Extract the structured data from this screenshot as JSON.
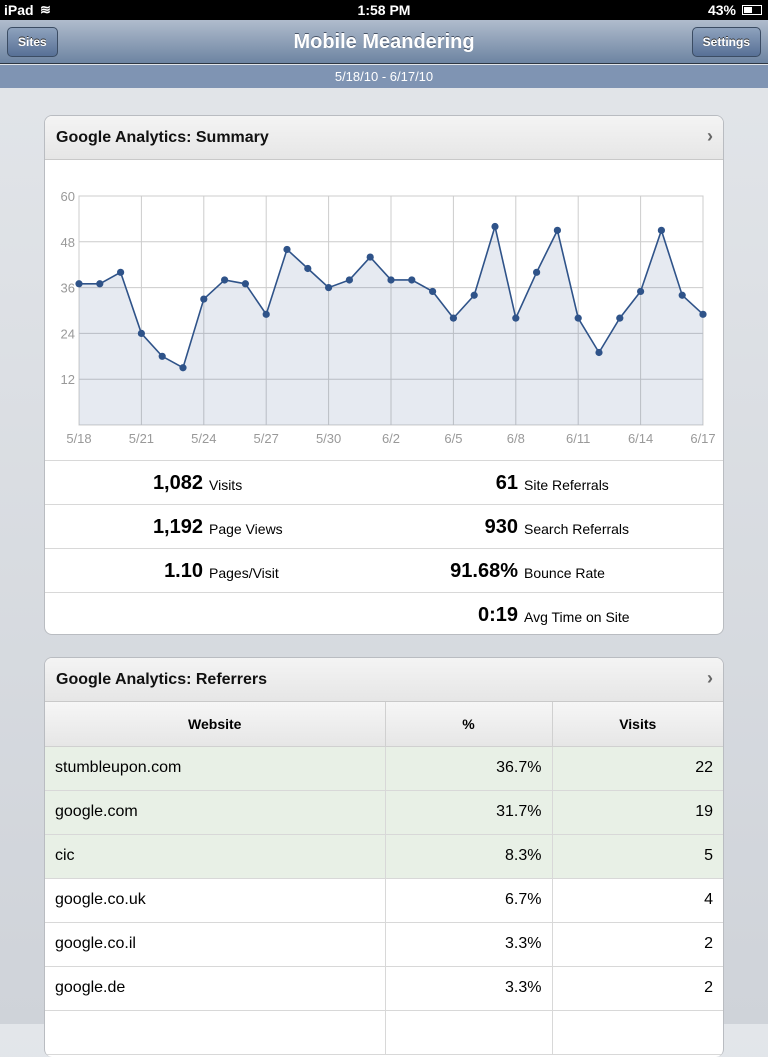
{
  "status": {
    "device": "iPad",
    "time": "1:58 PM",
    "battery": "43%"
  },
  "nav": {
    "title": "Mobile Meandering",
    "left_button": "Sites",
    "right_button": "Settings",
    "date_range": "5/18/10 - 6/17/10"
  },
  "summary": {
    "title": "Google Analytics: Summary",
    "stats": [
      {
        "value": "1,082",
        "label": "Visits"
      },
      {
        "value": "61",
        "label": "Site Referrals"
      },
      {
        "value": "1,192",
        "label": "Page Views"
      },
      {
        "value": "930",
        "label": "Search Referrals"
      },
      {
        "value": "1.10",
        "label": "Pages/Visit"
      },
      {
        "value": "91.68%",
        "label": "Bounce Rate"
      },
      {
        "value": "0:19",
        "label": "Avg Time on Site"
      }
    ]
  },
  "chart_data": {
    "type": "area",
    "title": "",
    "xlabel": "",
    "ylabel": "",
    "ylim": [
      0,
      60
    ],
    "grid": true,
    "y_ticks": [
      "12",
      "24",
      "36",
      "48",
      "60"
    ],
    "x_ticks": [
      "5/18",
      "5/21",
      "5/24",
      "5/27",
      "5/30",
      "6/2",
      "6/5",
      "6/8",
      "6/11",
      "6/14",
      "6/17"
    ],
    "series": [
      {
        "name": "Visits",
        "color": "#2f5389",
        "values": [
          37,
          37,
          40,
          24,
          18,
          15,
          33,
          38,
          37,
          29,
          46,
          41,
          36,
          38,
          44,
          38,
          38,
          35,
          28,
          34,
          52,
          28,
          40,
          51,
          28,
          19,
          28,
          35,
          51,
          34,
          29
        ]
      }
    ]
  },
  "referrers": {
    "title": "Google Analytics: Referrers",
    "columns": [
      "Website",
      "%",
      "Visits"
    ],
    "rows": [
      [
        "stumbleupon.com",
        "36.7%",
        "22"
      ],
      [
        "google.com",
        "31.7%",
        "19"
      ],
      [
        "cic",
        "8.3%",
        "5"
      ],
      [
        "google.co.uk",
        "6.7%",
        "4"
      ],
      [
        "google.co.il",
        "3.3%",
        "2"
      ],
      [
        "google.de",
        "3.3%",
        "2"
      ]
    ]
  }
}
